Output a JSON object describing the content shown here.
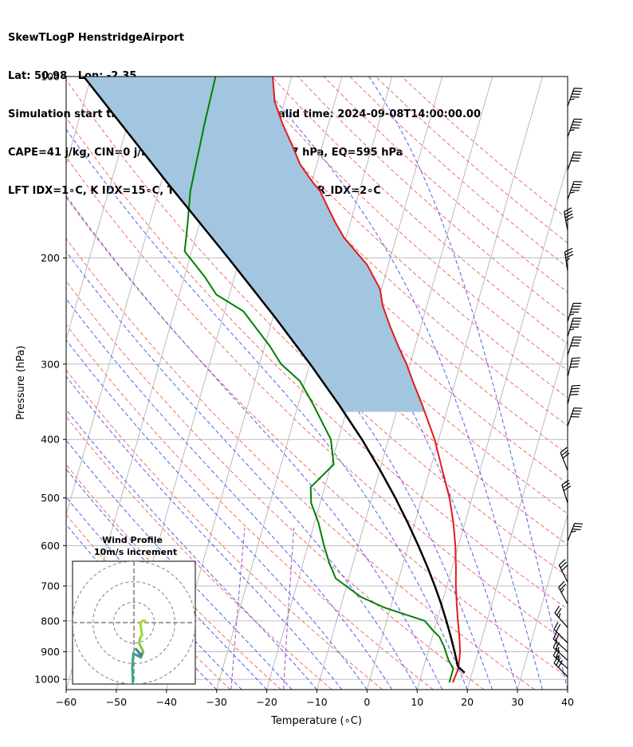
{
  "title_lines": [
    "SkewTLogP HenstridgeAirport",
    "Lat: 50.98   Lon: -2.35",
    "Simulation start time: 2024-09-07_00:00:00, Valid time: 2024-09-08T14:00:00.00",
    "CAPE=41 j/kg, CIN=0 j/kg, LCL=952 hPa, LFC=957 hPa, EQ=595 hPa",
    "LFT IDX=1∘C, K IDX=15∘C, TOTAL TOTS=47∘C, SHWTR_IDX=2∘C"
  ],
  "colors": {
    "temperature": "#e31a1c",
    "dewpoint": "#008000",
    "parcel": "#000000",
    "cape_fill": "#a2c6e0",
    "dry_adiabat": "#f26c6c",
    "moist_adiabat": "#5a5af0",
    "mixing_ratio": "#9b4fd0",
    "isotherm": "#aaaaaa"
  },
  "chart_data": [
    {
      "type": "line",
      "subtype": "skew-t-log-p",
      "xlabel": "Temperature (∘C)",
      "ylabel": "Pressure (hPa)",
      "xlim": [
        -60,
        40
      ],
      "ylim": [
        1040,
        100
      ],
      "y_scale": "log",
      "x_ticks": [
        "−60",
        "−50",
        "−40",
        "−30",
        "−20",
        "−10",
        "0",
        "10",
        "20",
        "30",
        "40"
      ],
      "y_ticks": [
        "100",
        "200",
        "300",
        "400",
        "500",
        "600",
        "700",
        "800",
        "900",
        "1000"
      ],
      "grid": true,
      "skew": 35,
      "series": [
        {
          "key": "temperature",
          "points": [
            [
              1012,
              16.7
            ],
            [
              960,
              17.0
            ],
            [
              900,
              16.4
            ],
            [
              850,
              15.4
            ],
            [
              800,
              14.2
            ],
            [
              750,
              13.0
            ],
            [
              700,
              11.8
            ],
            [
              650,
              10.7
            ],
            [
              600,
              9.4
            ],
            [
              550,
              7.7
            ],
            [
              500,
              5.5
            ],
            [
              450,
              2.5
            ],
            [
              400,
              -0.8
            ],
            [
              350,
              -5.3
            ],
            [
              320,
              -8.5
            ],
            [
              300,
              -10.7
            ],
            [
              280,
              -13.4
            ],
            [
              260,
              -16.1
            ],
            [
              240,
              -18.8
            ],
            [
              225,
              -20.3
            ],
            [
              205,
              -24.3
            ],
            [
              195,
              -27.3
            ],
            [
              185,
              -30.4
            ],
            [
              175,
              -32.9
            ],
            [
              165,
              -35.3
            ],
            [
              155,
              -37.8
            ],
            [
              150,
              -39.7
            ],
            [
              140,
              -43.3
            ],
            [
              130,
              -46.0
            ],
            [
              120,
              -49.1
            ],
            [
              110,
              -52.0
            ],
            [
              100,
              -53.8
            ]
          ]
        },
        {
          "key": "dewpoint",
          "points": [
            [
              1012,
              16.0
            ],
            [
              960,
              16.0
            ],
            [
              930,
              14.6
            ],
            [
              880,
              12.8
            ],
            [
              850,
              11.4
            ],
            [
              830,
              9.8
            ],
            [
              800,
              7.6
            ],
            [
              760,
              -1.3
            ],
            [
              730,
              -6.5
            ],
            [
              680,
              -12.6
            ],
            [
              640,
              -14.8
            ],
            [
              600,
              -16.8
            ],
            [
              550,
              -19.2
            ],
            [
              510,
              -21.8
            ],
            [
              480,
              -22.8
            ],
            [
              440,
              -19.5
            ],
            [
              400,
              -21.5
            ],
            [
              350,
              -27.0
            ],
            [
              320,
              -31.0
            ],
            [
              300,
              -35.7
            ],
            [
              280,
              -39.0
            ],
            [
              245,
              -46.3
            ],
            [
              230,
              -52.6
            ],
            [
              215,
              -55.9
            ],
            [
              195,
              -61.4
            ],
            [
              175,
              -62.4
            ],
            [
              155,
              -63.7
            ],
            [
              120,
              -64.7
            ],
            [
              100,
              -65.2
            ]
          ]
        },
        {
          "key": "parcel",
          "points": [
            [
              975,
              18.5
            ],
            [
              952,
              16.8
            ],
            [
              900,
              15.3
            ],
            [
              850,
              13.7
            ],
            [
              800,
              11.9
            ],
            [
              750,
              9.9
            ],
            [
              700,
              7.6
            ],
            [
              650,
              5.0
            ],
            [
              600,
              2.0
            ],
            [
              550,
              -1.4
            ],
            [
              500,
              -5.3
            ],
            [
              450,
              -9.9
            ],
            [
              400,
              -15.3
            ],
            [
              350,
              -21.9
            ],
            [
              300,
              -29.9
            ],
            [
              250,
              -39.8
            ],
            [
              200,
              -52.3
            ],
            [
              150,
              -68.8
            ],
            [
              100,
              -91.5
            ]
          ]
        }
      ],
      "wind_barbs": [
        {
          "p": 112,
          "u": -10,
          "v": -28
        },
        {
          "p": 126,
          "u": -10,
          "v": -28
        },
        {
          "p": 143,
          "u": -9,
          "v": -26
        },
        {
          "p": 160,
          "u": -8,
          "v": -23
        },
        {
          "p": 180,
          "u": 4,
          "v": -22
        },
        {
          "p": 210,
          "u": 3,
          "v": -20
        },
        {
          "p": 255,
          "u": -7,
          "v": -23
        },
        {
          "p": 270,
          "u": -7,
          "v": -23
        },
        {
          "p": 290,
          "u": -7,
          "v": -22
        },
        {
          "p": 315,
          "u": -5,
          "v": -21
        },
        {
          "p": 350,
          "u": -5,
          "v": -21
        },
        {
          "p": 380,
          "u": -7,
          "v": -20
        },
        {
          "p": 450,
          "u": 6,
          "v": -15
        },
        {
          "p": 510,
          "u": 5,
          "v": -16
        },
        {
          "p": 590,
          "u": -7,
          "v": -18
        },
        {
          "p": 690,
          "u": 7,
          "v": -14
        },
        {
          "p": 750,
          "u": 7,
          "v": -13
        },
        {
          "p": 820,
          "u": 9,
          "v": -10
        },
        {
          "p": 870,
          "u": 9,
          "v": -9
        },
        {
          "p": 900,
          "u": 9,
          "v": -8
        },
        {
          "p": 930,
          "u": 10,
          "v": -9
        },
        {
          "p": 960,
          "u": 11,
          "v": -10
        },
        {
          "p": 990,
          "u": 11,
          "v": -11
        }
      ]
    },
    {
      "type": "line",
      "subtype": "hodograph",
      "title_lines": [
        "Wind Profile",
        "10m/s increment"
      ],
      "rings": [
        10,
        20,
        30
      ],
      "xlim": [
        -30,
        30
      ],
      "ylim": [
        -30,
        30
      ],
      "points": [
        [
          -0.5,
          -30
        ],
        [
          -0.8,
          -22
        ],
        [
          -0.3,
          -15
        ],
        [
          1.5,
          -16
        ],
        [
          3.5,
          -17
        ],
        [
          2.0,
          -14
        ],
        [
          1.0,
          -13
        ],
        [
          3.8,
          -16
        ],
        [
          4.5,
          -14
        ],
        [
          3.5,
          -12
        ],
        [
          2.5,
          -10
        ],
        [
          3.0,
          -7.5
        ],
        [
          4.0,
          -6
        ],
        [
          3.5,
          -3
        ],
        [
          3.2,
          -1
        ],
        [
          3.5,
          0.5
        ],
        [
          4.8,
          1.0
        ],
        [
          5.5,
          0.8
        ]
      ]
    }
  ]
}
